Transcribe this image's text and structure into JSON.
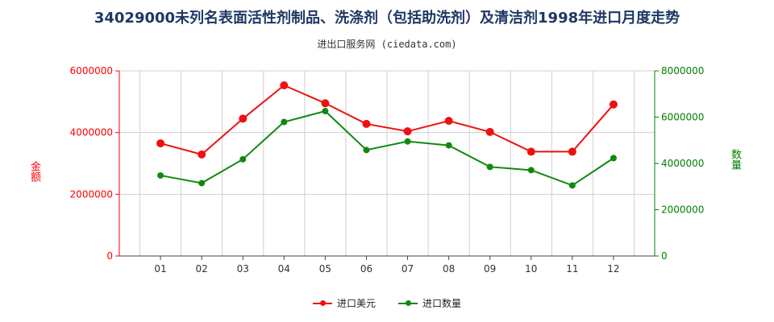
{
  "chart_data": {
    "type": "line",
    "title": "34029000未列名表面活性剂制品、洗涤剂（包括助洗剂）及清洁剂1998年进口月度走势",
    "subtitle": "进出口服务网 (ciedata.com)",
    "categories": [
      "01",
      "02",
      "03",
      "04",
      "05",
      "06",
      "07",
      "08",
      "09",
      "10",
      "11",
      "12"
    ],
    "y_left": {
      "label": "金额",
      "range": [
        0,
        6000000
      ],
      "ticks": [
        0,
        2000000,
        4000000,
        6000000
      ],
      "tick_labels": [
        "0",
        "2000000",
        "4000000",
        "6000000"
      ],
      "color": "#ff0000"
    },
    "y_right": {
      "label": "数量",
      "range": [
        0,
        8000000
      ],
      "ticks": [
        0,
        2000000,
        4000000,
        6000000,
        8000000
      ],
      "tick_labels": [
        "0",
        "2000000",
        "4000000",
        "6000000",
        "8000000"
      ],
      "color": "#008000"
    },
    "series": [
      {
        "name": "进口美元",
        "axis": "left",
        "color": "#ee1111",
        "values": [
          3650000,
          3290000,
          4450000,
          5530000,
          4950000,
          4280000,
          4040000,
          4380000,
          4020000,
          3380000,
          3380000,
          4910000
        ]
      },
      {
        "name": "进口数量",
        "axis": "right",
        "color": "#118811",
        "values": [
          3480000,
          3150000,
          4180000,
          5790000,
          6260000,
          4580000,
          4950000,
          4780000,
          3850000,
          3710000,
          3050000,
          4230000
        ]
      }
    ],
    "grid": true,
    "legend_position": "bottom"
  }
}
